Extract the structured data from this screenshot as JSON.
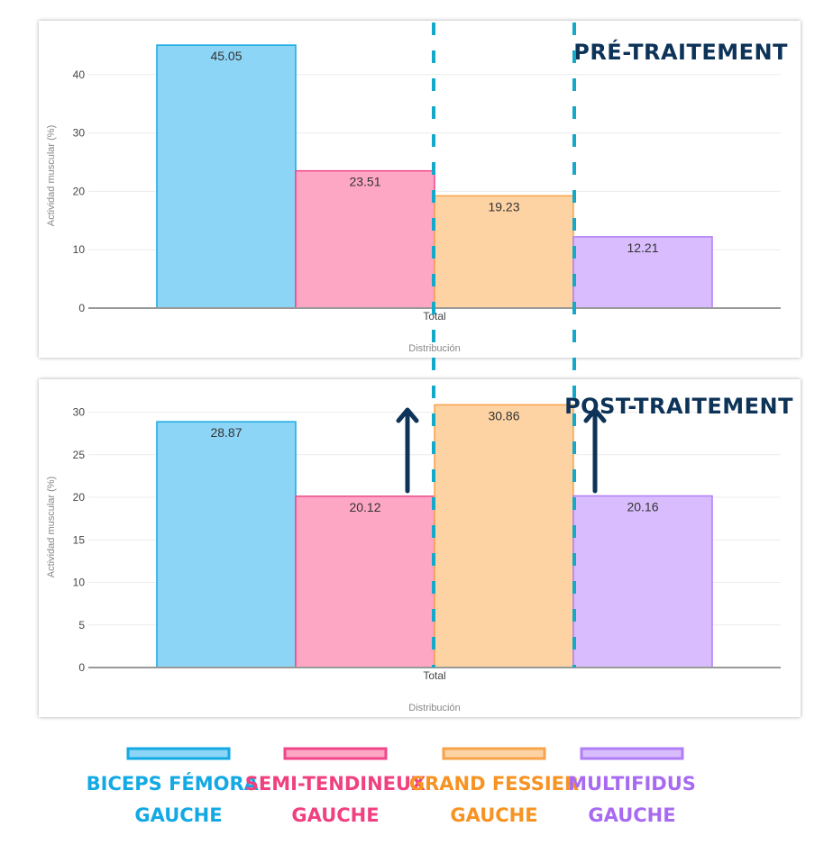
{
  "chart_data": [
    {
      "type": "bar",
      "title": "PRÉ-TRAITEMENT",
      "xlabel": "Distribución",
      "ylabel": "Actividad muscular (%)",
      "categories": [
        "Total"
      ],
      "series": [
        {
          "name": "BICEPS FÉMORAL GAUCHE",
          "values": [
            45.05
          ]
        },
        {
          "name": "SEMI-TENDINEUX GAUCHE",
          "values": [
            23.51
          ]
        },
        {
          "name": "GRAND FESSIER GAUCHE",
          "values": [
            19.23
          ]
        },
        {
          "name": "MULTIFIDUS GAUCHE",
          "values": [
            12.21
          ]
        }
      ],
      "ylim": [
        0,
        46.5
      ],
      "yticks": [
        0,
        10,
        20,
        30,
        40
      ],
      "grid": true
    },
    {
      "type": "bar",
      "title": "POST-TRAITEMENT",
      "xlabel": "Distribución",
      "ylabel": "Actividad muscular (%)",
      "categories": [
        "Total"
      ],
      "series": [
        {
          "name": "BICEPS FÉMORAL GAUCHE",
          "values": [
            28.87
          ]
        },
        {
          "name": "SEMI-TENDINEUX GAUCHE",
          "values": [
            20.12
          ]
        },
        {
          "name": "GRAND FESSIER GAUCHE",
          "values": [
            30.86
          ]
        },
        {
          "name": "MULTIFIDUS GAUCHE",
          "values": [
            20.16
          ]
        }
      ],
      "ylim": [
        0,
        31.8
      ],
      "yticks": [
        0,
        5,
        10,
        15,
        20,
        25,
        30
      ],
      "grid": true,
      "annotations": [
        "up-arrow SEMI-TENDINEUX GAUCHE",
        "up-arrow MULTIFIDUS GAUCHE"
      ]
    }
  ],
  "colors": {
    "biceps": {
      "fill": "#8dd5f6",
      "stroke": "#13a9e4",
      "text": "#13a9e4"
    },
    "semi": {
      "fill": "#fda7c4",
      "stroke": "#f0478a",
      "text": "#f0407f"
    },
    "fessier": {
      "fill": "#fdd3a4",
      "stroke": "#f7a34a",
      "text": "#f79322"
    },
    "multifidus": {
      "fill": "#d9bcfd",
      "stroke": "#b07ef6",
      "text": "#a76af1"
    },
    "heading": "#0d3358",
    "dash": "#14a9c8",
    "arrow": "#0d3358"
  },
  "legend": [
    {
      "key": "biceps",
      "line1": "BICEPS FÉMORAL",
      "line2": "GAUCHE"
    },
    {
      "key": "semi",
      "line1": "SEMI-TENDINEUX",
      "line2": "GAUCHE"
    },
    {
      "key": "fessier",
      "line1": "GRAND FESSIER",
      "line2": "GAUCHE"
    },
    {
      "key": "multifidus",
      "line1": "MULTIFIDUS",
      "line2": "GAUCHE"
    }
  ]
}
